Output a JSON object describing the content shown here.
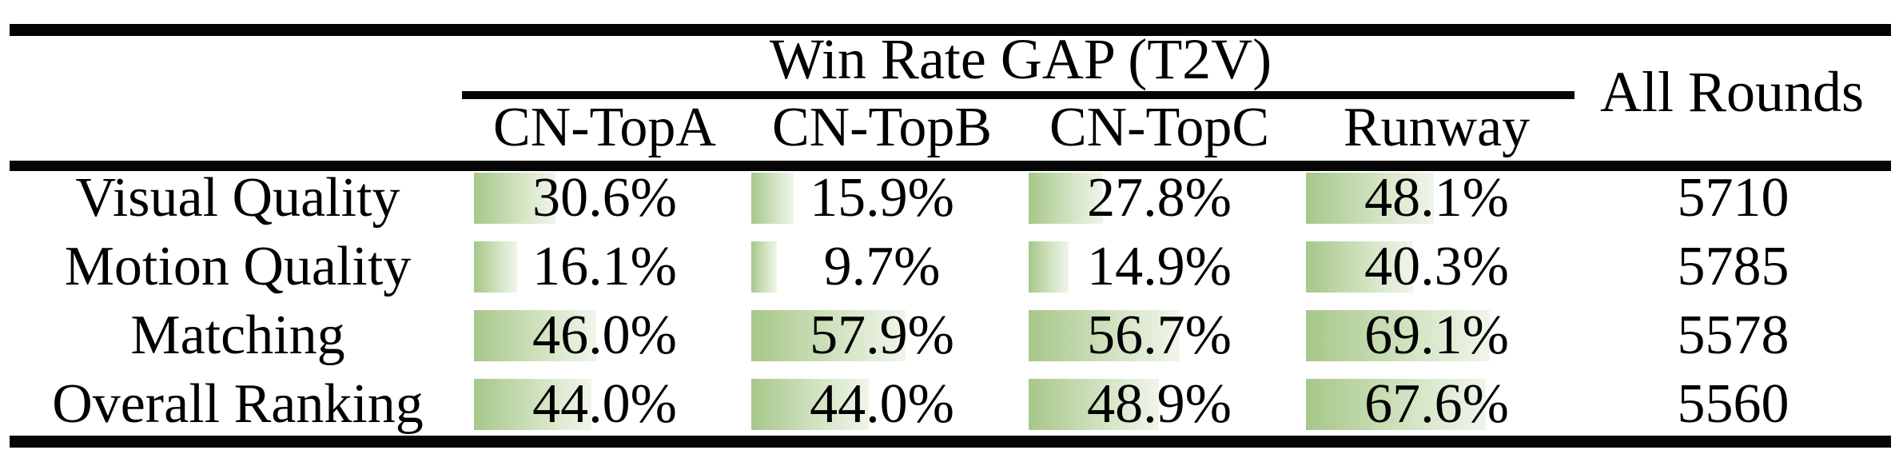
{
  "header": {
    "group": "Win Rate GAP (T2V)",
    "all_rounds": "All Rounds"
  },
  "columns": [
    "CN-TopA",
    "CN-TopB",
    "CN-TopC",
    "Runway"
  ],
  "rows": [
    {
      "label": "Visual Quality",
      "cells": [
        {
          "text": "30.6%",
          "value": 30.6
        },
        {
          "text": "15.9%",
          "value": 15.9
        },
        {
          "text": "27.8%",
          "value": 27.8
        },
        {
          "text": "48.1%",
          "value": 48.1
        }
      ],
      "all_rounds": "5710"
    },
    {
      "label": "Motion Quality",
      "cells": [
        {
          "text": "16.1%",
          "value": 16.1
        },
        {
          "text": "9.7%",
          "value": 9.7
        },
        {
          "text": "14.9%",
          "value": 14.9
        },
        {
          "text": "40.3%",
          "value": 40.3
        }
      ],
      "all_rounds": "5785"
    },
    {
      "label": "Matching",
      "cells": [
        {
          "text": "46.0%",
          "value": 46.0
        },
        {
          "text": "57.9%",
          "value": 57.9
        },
        {
          "text": "56.7%",
          "value": 56.7
        },
        {
          "text": "69.1%",
          "value": 69.1
        }
      ],
      "all_rounds": "5578"
    },
    {
      "label": "Overall Ranking",
      "cells": [
        {
          "text": "44.0%",
          "value": 44.0
        },
        {
          "text": "44.0%",
          "value": 44.0
        },
        {
          "text": "48.9%",
          "value": 48.9
        },
        {
          "text": "67.6%",
          "value": 67.6
        }
      ],
      "all_rounds": "5560"
    }
  ],
  "colors": {
    "bar_gradient_start": "#a7c789",
    "bar_gradient_end": "#f0f5ea",
    "rule_black": "#050505"
  },
  "chart_data": {
    "type": "table",
    "title": "Win Rate GAP (T2V)",
    "row_header": [
      "Visual Quality",
      "Motion Quality",
      "Matching",
      "Overall Ranking"
    ],
    "columns": [
      "CN-TopA",
      "CN-TopB",
      "CN-TopC",
      "Runway",
      "All Rounds"
    ],
    "series": [
      {
        "name": "Visual Quality",
        "values": [
          30.6,
          15.9,
          27.8,
          48.1
        ],
        "all_rounds": 5710
      },
      {
        "name": "Motion Quality",
        "values": [
          16.1,
          9.7,
          14.9,
          40.3
        ],
        "all_rounds": 5785
      },
      {
        "name": "Matching",
        "values": [
          46.0,
          57.9,
          56.7,
          69.1
        ],
        "all_rounds": 5578
      },
      {
        "name": "Overall Ranking",
        "values": [
          44.0,
          44.0,
          48.9,
          67.6
        ],
        "all_rounds": 5560
      }
    ],
    "value_unit": "percent",
    "databar_scale_max": 100,
    "layout": "booktabs table with green gradient data bars, bars left-aligned per cell"
  }
}
